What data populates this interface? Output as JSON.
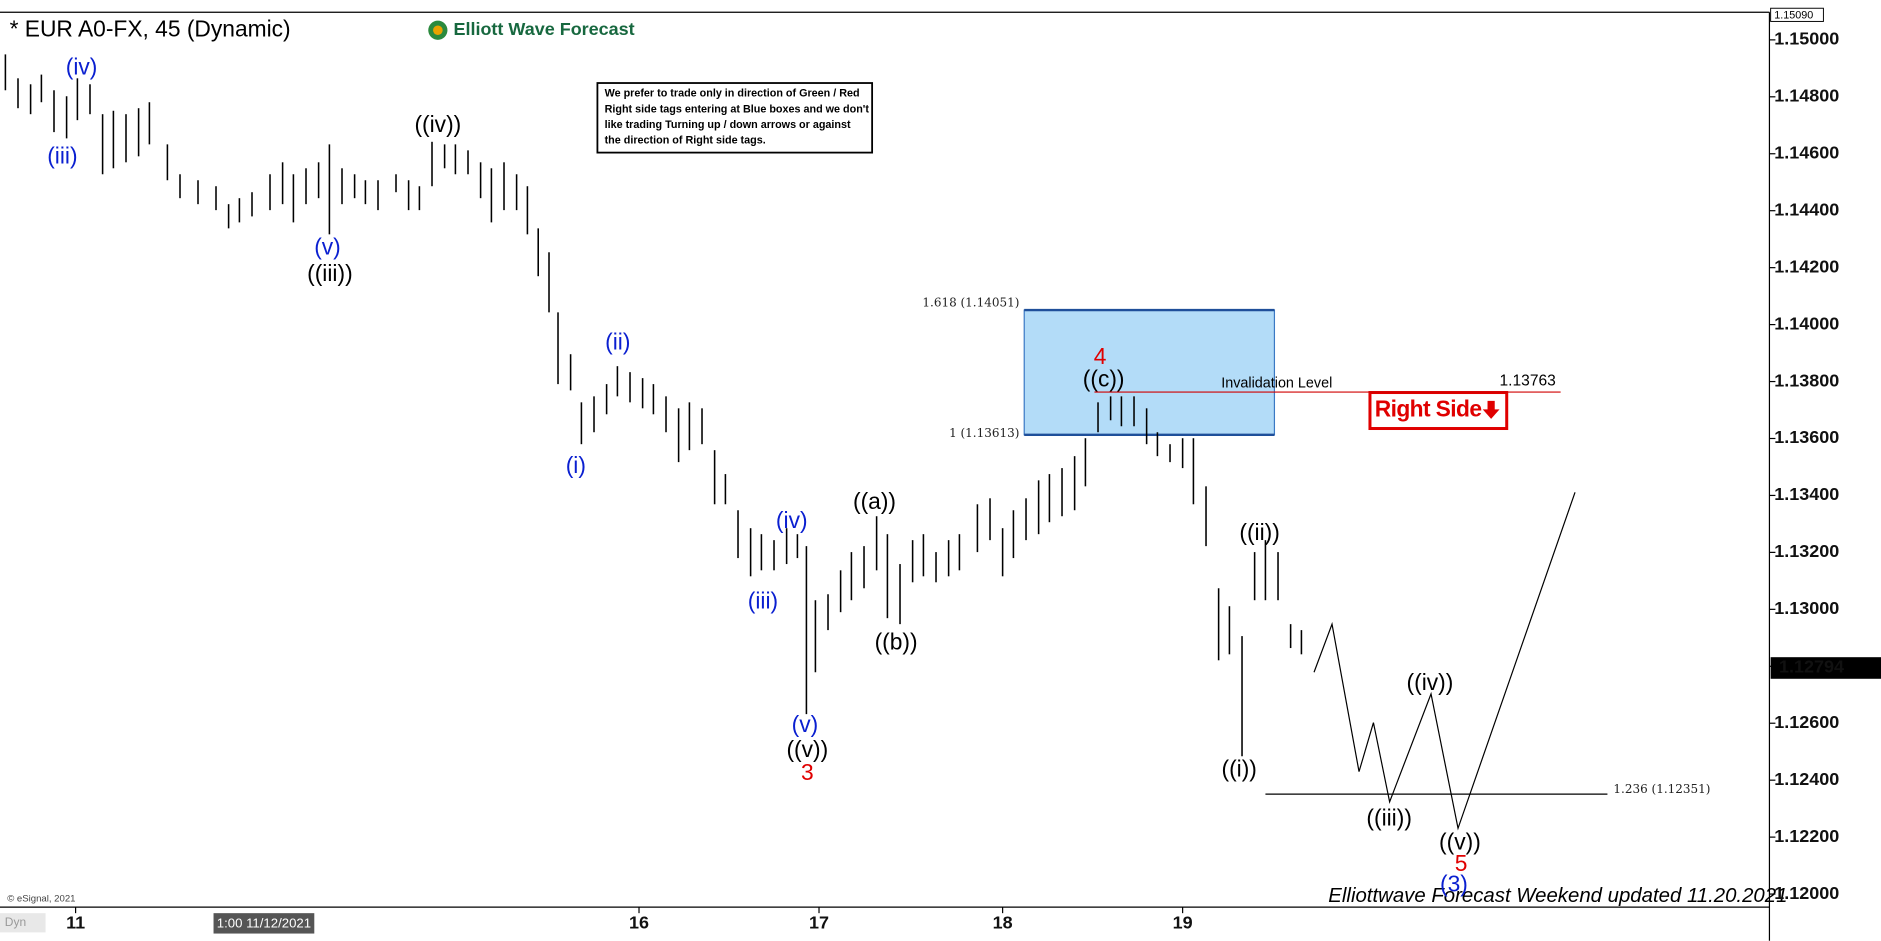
{
  "chart_data": {
    "type": "ohlc",
    "title": "* EUR A0-FX, 45 (Dynamic)",
    "brand": "Elliott Wave Forecast",
    "note": {
      "lines": [
        "We prefer to trade only in direction of Green / Red",
        "Right side tags entering at Blue boxes and we don't",
        "like trading Turning up / down arrows or against",
        "the direction of Right side tags."
      ]
    },
    "footer": "Elliottwave Forecast Weekend updated 11.20.2021",
    "copyright": "© eSignal, 2021",
    "mode": "Dyn",
    "cursor_time": "1:00 11/12/2021",
    "bar_color": "#000000",
    "xlim": [
      -0.42,
      9.41
    ],
    "xticks": [
      {
        "value": 0,
        "label": "11"
      },
      {
        "value": 3.13,
        "label": "16"
      },
      {
        "value": 4.13,
        "label": "17"
      },
      {
        "value": 5.15,
        "label": "18"
      },
      {
        "value": 6.15,
        "label": "19"
      }
    ],
    "ylim": [
      1.11954,
      1.15097
    ],
    "yticks": [
      {
        "value": 1.15,
        "label": "1.15000"
      },
      {
        "value": 1.148,
        "label": "1.14800"
      },
      {
        "value": 1.146,
        "label": "1.14600"
      },
      {
        "value": 1.144,
        "label": "1.14400"
      },
      {
        "value": 1.142,
        "label": "1.14200"
      },
      {
        "value": 1.14,
        "label": "1.14000"
      },
      {
        "value": 1.138,
        "label": "1.13800"
      },
      {
        "value": 1.136,
        "label": "1.13600"
      },
      {
        "value": 1.134,
        "label": "1.13400"
      },
      {
        "value": 1.132,
        "label": "1.13200"
      },
      {
        "value": 1.13,
        "label": "1.13000"
      },
      {
        "value": 1.128,
        "label": "1.12800"
      },
      {
        "value": 1.126,
        "label": "1.12600"
      },
      {
        "value": 1.124,
        "label": "1.12400"
      },
      {
        "value": 1.122,
        "label": "1.12200"
      },
      {
        "value": 1.12,
        "label": "1.12000"
      }
    ],
    "top_marker": {
      "value": 1.1509,
      "label": "1.15090"
    },
    "last_price": 1.12794,
    "x": [
      -0.39,
      -0.32,
      -0.25,
      -0.19,
      -0.12,
      -0.05,
      0.01,
      0.08,
      0.15,
      0.21,
      0.28,
      0.35,
      0.41,
      0.51,
      0.58,
      0.68,
      0.78,
      0.85,
      0.91,
      0.98,
      1.08,
      1.15,
      1.21,
      1.28,
      1.35,
      1.41,
      1.48,
      1.55,
      1.61,
      1.68,
      1.78,
      1.85,
      1.91,
      1.98,
      2.05,
      2.11,
      2.18,
      2.25,
      2.31,
      2.38,
      2.45,
      2.51,
      2.57,
      2.63,
      2.68,
      2.75,
      2.81,
      2.88,
      2.95,
      3.01,
      3.08,
      3.15,
      3.21,
      3.28,
      3.35,
      3.41,
      3.48,
      3.55,
      3.61,
      3.68,
      3.75,
      3.81,
      3.88,
      3.95,
      4.01,
      4.06,
      4.11,
      4.18,
      4.25,
      4.31,
      4.38,
      4.45,
      4.51,
      4.58,
      4.65,
      4.71,
      4.78,
      4.85,
      4.91,
      5.01,
      5.08,
      5.15,
      5.21,
      5.28,
      5.35,
      5.41,
      5.48,
      5.55,
      5.61,
      5.68,
      5.75,
      5.81,
      5.88,
      5.95,
      6.01,
      6.08,
      6.15,
      6.21,
      6.28,
      6.35,
      6.41,
      6.48,
      6.55,
      6.61,
      6.68,
      6.75,
      6.81
    ],
    "high": [
      1.14949,
      1.14865,
      1.14844,
      1.14878,
      1.14823,
      1.14802,
      1.14865,
      1.14844,
      1.14739,
      1.14751,
      1.14739,
      1.1476,
      1.14781,
      1.14633,
      1.14528,
      1.14507,
      1.14486,
      1.14423,
      1.14444,
      1.14465,
      1.14528,
      1.1457,
      1.14528,
      1.14549,
      1.1457,
      1.14633,
      1.14549,
      1.14528,
      1.14507,
      1.14507,
      1.14528,
      1.14507,
      1.14486,
      1.14642,
      1.14633,
      1.14633,
      1.14612,
      1.1457,
      1.14549,
      1.1457,
      1.14528,
      1.14486,
      1.14338,
      1.14254,
      1.14043,
      1.13896,
      1.13727,
      1.13748,
      1.13791,
      1.13854,
      1.13833,
      1.13812,
      1.13791,
      1.13748,
      1.13706,
      1.13727,
      1.13706,
      1.13559,
      1.13475,
      1.13348,
      1.13285,
      1.13264,
      1.13243,
      1.13285,
      1.13264,
      1.13222,
      1.13032,
      1.13053,
      1.13137,
      1.13201,
      1.13222,
      1.13327,
      1.13264,
      1.13159,
      1.13243,
      1.13264,
      1.13201,
      1.13243,
      1.13264,
      1.13369,
      1.1339,
      1.13285,
      1.13348,
      1.1339,
      1.13453,
      1.13475,
      1.13496,
      1.13538,
      1.13601,
      1.13727,
      1.13748,
      1.13748,
      1.13748,
      1.13706,
      1.13622,
      1.1358,
      1.13601,
      1.13601,
      1.13432,
      1.13074,
      1.13011,
      1.12906,
      1.13201,
      1.13243,
      1.13201,
      1.12948,
      1.12927
    ],
    "low": [
      1.14823,
      1.1476,
      1.14739,
      1.14781,
      1.14676,
      1.14654,
      1.14718,
      1.14739,
      1.14528,
      1.14549,
      1.1457,
      1.14591,
      1.14633,
      1.14507,
      1.14444,
      1.14423,
      1.14402,
      1.14338,
      1.14359,
      1.1438,
      1.14402,
      1.14423,
      1.14359,
      1.14423,
      1.14444,
      1.14317,
      1.14423,
      1.14444,
      1.14423,
      1.14402,
      1.14465,
      1.14402,
      1.14402,
      1.14486,
      1.14549,
      1.14528,
      1.14528,
      1.14444,
      1.14359,
      1.14402,
      1.14402,
      1.14317,
      1.1417,
      1.14043,
      1.13791,
      1.13769,
      1.1358,
      1.13622,
      1.13685,
      1.13748,
      1.13727,
      1.13706,
      1.13685,
      1.13622,
      1.13517,
      1.13559,
      1.1358,
      1.13369,
      1.13369,
      1.1318,
      1.13116,
      1.13137,
      1.13137,
      1.13159,
      1.1318,
      1.12632,
      1.12779,
      1.12927,
      1.1299,
      1.13032,
      1.13074,
      1.13137,
      1.12969,
      1.12948,
      1.13095,
      1.13116,
      1.13095,
      1.13116,
      1.13137,
      1.13201,
      1.13243,
      1.13116,
      1.1318,
      1.13243,
      1.13264,
      1.13306,
      1.13327,
      1.13348,
      1.13432,
      1.13622,
      1.13664,
      1.13643,
      1.13643,
      1.1358,
      1.13538,
      1.13517,
      1.13496,
      1.13369,
      1.13222,
      1.12821,
      1.12842,
      1.12484,
      1.13032,
      1.13032,
      1.13032,
      1.12864,
      1.12842
    ],
    "projection": {
      "color": "#000000",
      "x": [
        6.88,
        6.98,
        7.13,
        7.21,
        7.3,
        7.53,
        7.68,
        8.33
      ],
      "values": [
        1.12779,
        1.12948,
        1.1243,
        1.12602,
        1.12324,
        1.12703,
        1.12231,
        1.13411
      ]
    },
    "blue_box": {
      "x": [
        5.27,
        6.66
      ],
      "top": 1.14051,
      "bottom": 1.13613,
      "top_label": "1.618 (1.14051)",
      "bottom_label": "1 (1.13613)",
      "color": "#b3dcf8"
    },
    "invalidation": {
      "label": "Invalidation Level",
      "value": 1.13763,
      "x": [
        5.66,
        8.25
      ],
      "color": "#d00000"
    },
    "extension": {
      "label": "1.236 (1.12351)",
      "value": 1.12351,
      "x": [
        6.61,
        8.51
      ],
      "color": "#000000"
    },
    "tag": {
      "text": "Right Side",
      "color": "#e00000"
    },
    "annotations": [
      {
        "text": "(iv)",
        "color": "#0a1fd0"
      },
      {
        "text": "(iii)",
        "color": "#0a1fd0"
      },
      {
        "text": "(v)",
        "color": "#0a1fd0"
      },
      {
        "text": "((iii))",
        "color": "#000000"
      },
      {
        "text": "((iv))",
        "color": "#000000"
      },
      {
        "text": "(ii)",
        "color": "#0a1fd0"
      },
      {
        "text": "(i)",
        "color": "#0a1fd0"
      },
      {
        "text": "(iv)",
        "color": "#0a1fd0"
      },
      {
        "text": "(iii)",
        "color": "#0a1fd0"
      },
      {
        "text": "(v)",
        "color": "#0a1fd0"
      },
      {
        "text": "((v))",
        "color": "#000000"
      },
      {
        "text": "3",
        "color": "#e00000"
      },
      {
        "text": "((a))",
        "color": "#000000"
      },
      {
        "text": "((b))",
        "color": "#000000"
      },
      {
        "text": "4",
        "color": "#e00000"
      },
      {
        "text": "((c))",
        "color": "#000000"
      },
      {
        "text": "((ii))",
        "color": "#000000"
      },
      {
        "text": "((i))",
        "color": "#000000"
      },
      {
        "text": "((iv))",
        "color": "#000000"
      },
      {
        "text": "((iii))",
        "color": "#000000"
      },
      {
        "text": "((v))",
        "color": "#000000"
      },
      {
        "text": "5",
        "color": "#e00000"
      },
      {
        "text": "(3)",
        "color": "#0a1fd0"
      }
    ]
  }
}
